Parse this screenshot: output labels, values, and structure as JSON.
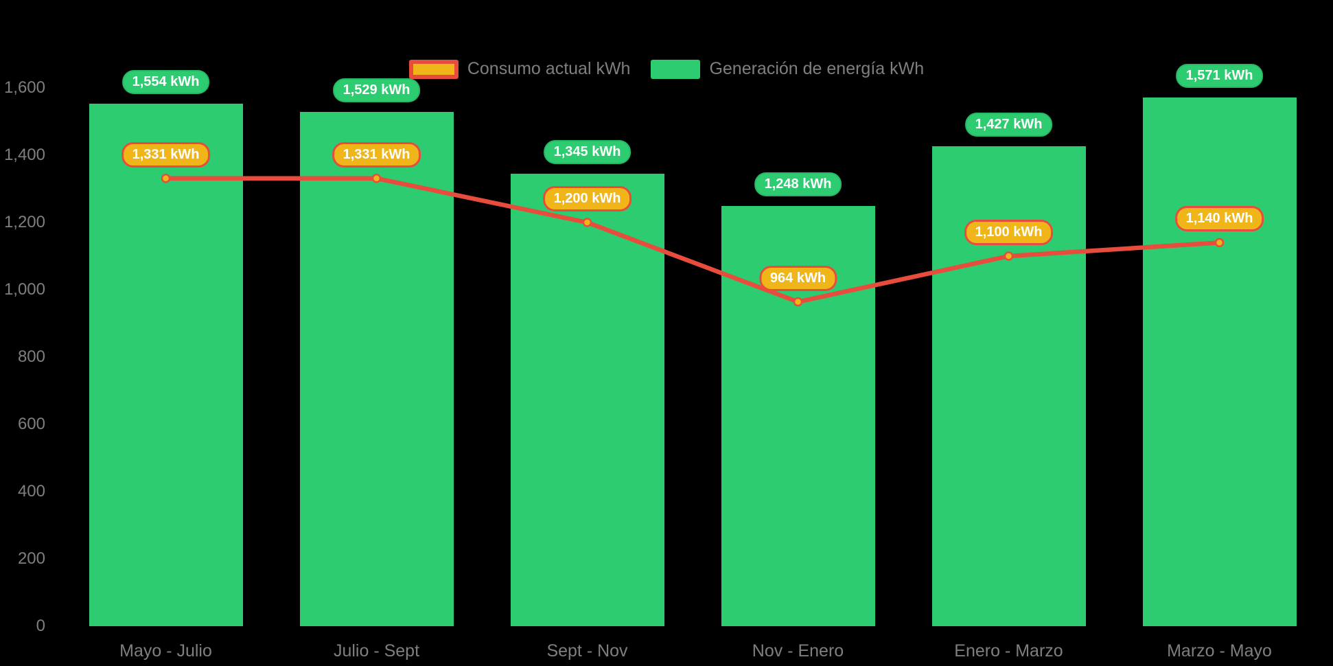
{
  "chart_data": {
    "type": "bar",
    "subtype": "bar-line-combo",
    "title": "",
    "categories": [
      "Mayo - Julio",
      "Julio - Sept",
      "Sept - Nov",
      "Nov - Enero",
      "Enero - Marzo",
      "Marzo - Mayo"
    ],
    "series": [
      {
        "name": "Consumo actual kWh",
        "type": "line",
        "color": "#e74c3c",
        "marker_fill": "#f0b518",
        "values": [
          1331,
          1331,
          1200,
          964,
          1100,
          1140
        ],
        "labels": [
          "1,331 kWh",
          "1,331 kWh",
          "1,200 kWh",
          "964 kWh",
          "1,100 kWh",
          "1,140 kWh"
        ]
      },
      {
        "name": "Generación de energía kWh",
        "type": "bar",
        "color": "#2ecc71",
        "badge_border": "#27b765",
        "values": [
          1554,
          1529,
          1345,
          1248,
          1427,
          1571
        ],
        "labels": [
          "1,554 kWh",
          "1,529 kWh",
          "1,345 kWh",
          "1,248 kWh",
          "1,427 kWh",
          "1,571 kWh"
        ]
      }
    ],
    "xlabel": "",
    "ylabel": "",
    "ylim": [
      0,
      1600
    ],
    "ytick_step": 200,
    "yticks": [
      "0",
      "200",
      "400",
      "600",
      "800",
      "1,000",
      "1,200",
      "1,400",
      "1,600"
    ],
    "grid": false,
    "legend_position": "top-center",
    "background": "#000000",
    "axis_text_color": "#7f7f7f",
    "value_label_text_color": "#ffffff"
  }
}
